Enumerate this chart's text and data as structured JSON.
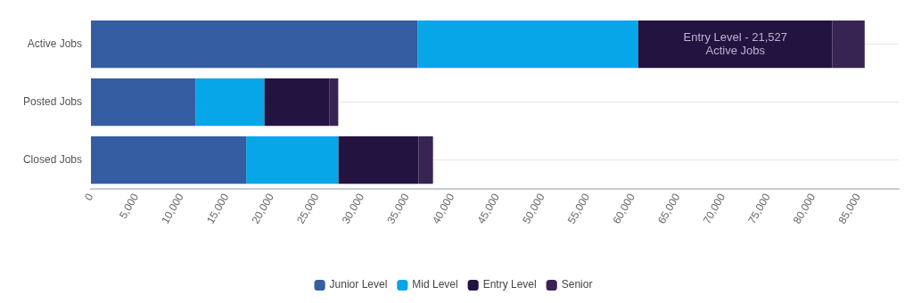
{
  "chart_data": {
    "type": "bar",
    "orientation": "horizontal",
    "stacked": true,
    "categories": [
      "Active Jobs",
      "Posted Jobs",
      "Closed Jobs"
    ],
    "series": [
      {
        "name": "Junior Level",
        "color": "#345ea1",
        "values": [
          36200,
          11600,
          17200
        ]
      },
      {
        "name": "Mid Level",
        "color": "#07a6e8",
        "values": [
          24400,
          7600,
          10200
        ]
      },
      {
        "name": "Entry Level",
        "color": "#221340",
        "values": [
          21527,
          7200,
          8900
        ]
      },
      {
        "name": "Senior",
        "color": "#382452",
        "values": [
          3600,
          1000,
          1600
        ]
      }
    ],
    "xlim": [
      0,
      89500
    ],
    "xticks": [
      {
        "value": 0,
        "label": "0"
      },
      {
        "value": 5000,
        "label": "5,000"
      },
      {
        "value": 10000,
        "label": "10,000"
      },
      {
        "value": 15000,
        "label": "15,000"
      },
      {
        "value": 20000,
        "label": "20,000"
      },
      {
        "value": 25000,
        "label": "25,000"
      },
      {
        "value": 30000,
        "label": "30,000"
      },
      {
        "value": 35000,
        "label": "35,000"
      },
      {
        "value": 40000,
        "label": "40,000"
      },
      {
        "value": 45000,
        "label": "45,000"
      },
      {
        "value": 50000,
        "label": "50,000"
      },
      {
        "value": 55000,
        "label": "55,000"
      },
      {
        "value": 60000,
        "label": "60,000"
      },
      {
        "value": 65000,
        "label": "65,000"
      },
      {
        "value": 70000,
        "label": "70,000"
      },
      {
        "value": 75000,
        "label": "75,000"
      },
      {
        "value": 80000,
        "label": "80,000"
      },
      {
        "value": 85000,
        "label": "85,000"
      }
    ],
    "grid": "y",
    "legend": "bottom",
    "annotations": [
      {
        "text": "Entry Level - 21,527\nActive Jobs",
        "x": 71400,
        "y": "Active Jobs"
      }
    ]
  }
}
